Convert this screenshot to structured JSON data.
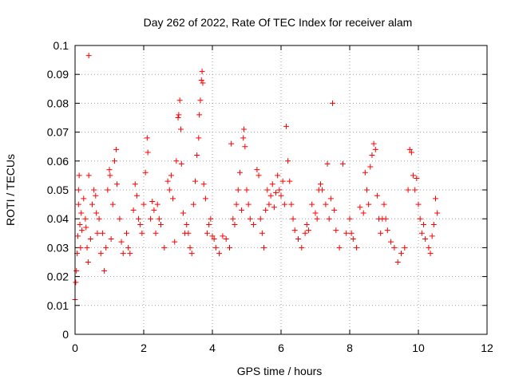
{
  "chart_data": {
    "type": "scatter",
    "title": "Day 262 of 2022, Rate Of TEC Index for receiver alam",
    "xlabel": "GPS time / hours",
    "ylabel": "ROTI / TECUs",
    "xlim": [
      0,
      12
    ],
    "ylim": [
      0,
      0.1
    ],
    "xticks": [
      "0",
      "2",
      "4",
      "6",
      "8",
      "10",
      "12"
    ],
    "yticks": [
      "0",
      "0.01",
      "0.02",
      "0.03",
      "0.04",
      "0.05",
      "0.06",
      "0.07",
      "0.08",
      "0.09",
      "0.1"
    ],
    "grid": true,
    "legend": "none",
    "marker": "plus",
    "color": "#ff0000",
    "series": [
      {
        "values": [
          [
            0.0,
            0.012
          ],
          [
            0.02,
            0.018
          ],
          [
            0.04,
            0.022
          ],
          [
            0.06,
            0.028
          ],
          [
            0.08,
            0.034
          ],
          [
            0.1,
            0.05
          ],
          [
            0.1,
            0.045
          ],
          [
            0.12,
            0.055
          ],
          [
            0.14,
            0.038
          ],
          [
            0.16,
            0.03
          ],
          [
            0.18,
            0.042
          ],
          [
            0.2,
            0.036
          ],
          [
            0.25,
            0.047
          ],
          [
            0.3,
            0.04
          ],
          [
            0.32,
            0.037
          ],
          [
            0.35,
            0.03
          ],
          [
            0.38,
            0.025
          ],
          [
            0.4,
            0.0965
          ],
          [
            0.4,
            0.055
          ],
          [
            0.45,
            0.033
          ],
          [
            0.5,
            0.045
          ],
          [
            0.55,
            0.05
          ],
          [
            0.6,
            0.048
          ],
          [
            0.62,
            0.042
          ],
          [
            0.65,
            0.035
          ],
          [
            0.7,
            0.04
          ],
          [
            0.75,
            0.028
          ],
          [
            0.8,
            0.035
          ],
          [
            0.85,
            0.022
          ],
          [
            0.9,
            0.03
          ],
          [
            0.95,
            0.05
          ],
          [
            1.0,
            0.057
          ],
          [
            1.02,
            0.055
          ],
          [
            1.05,
            0.033
          ],
          [
            1.1,
            0.045
          ],
          [
            1.15,
            0.06
          ],
          [
            1.2,
            0.064
          ],
          [
            1.22,
            0.052
          ],
          [
            1.3,
            0.04
          ],
          [
            1.35,
            0.032
          ],
          [
            1.4,
            0.028
          ],
          [
            1.5,
            0.035
          ],
          [
            1.55,
            0.03
          ],
          [
            1.6,
            0.028
          ],
          [
            1.7,
            0.043
          ],
          [
            1.75,
            0.052
          ],
          [
            1.8,
            0.048
          ],
          [
            1.85,
            0.04
          ],
          [
            1.9,
            0.038
          ],
          [
            1.95,
            0.035
          ],
          [
            2.0,
            0.045
          ],
          [
            2.05,
            0.056
          ],
          [
            2.1,
            0.068
          ],
          [
            2.12,
            0.063
          ],
          [
            2.2,
            0.04
          ],
          [
            2.25,
            0.046
          ],
          [
            2.3,
            0.043
          ],
          [
            2.35,
            0.035
          ],
          [
            2.4,
            0.045
          ],
          [
            2.45,
            0.04
          ],
          [
            2.5,
            0.038
          ],
          [
            2.6,
            0.03
          ],
          [
            2.7,
            0.053
          ],
          [
            2.75,
            0.05
          ],
          [
            2.8,
            0.055
          ],
          [
            2.85,
            0.047
          ],
          [
            2.9,
            0.032
          ],
          [
            2.95,
            0.06
          ],
          [
            3.0,
            0.075
          ],
          [
            3.02,
            0.076
          ],
          [
            3.05,
            0.081
          ],
          [
            3.08,
            0.071
          ],
          [
            3.1,
            0.059
          ],
          [
            3.15,
            0.042
          ],
          [
            3.2,
            0.035
          ],
          [
            3.25,
            0.038
          ],
          [
            3.3,
            0.035
          ],
          [
            3.35,
            0.03
          ],
          [
            3.4,
            0.028
          ],
          [
            3.45,
            0.045
          ],
          [
            3.5,
            0.053
          ],
          [
            3.55,
            0.062
          ],
          [
            3.6,
            0.068
          ],
          [
            3.62,
            0.076
          ],
          [
            3.65,
            0.081
          ],
          [
            3.68,
            0.088
          ],
          [
            3.7,
            0.091
          ],
          [
            3.72,
            0.087
          ],
          [
            3.75,
            0.052
          ],
          [
            3.8,
            0.047
          ],
          [
            3.85,
            0.035
          ],
          [
            3.9,
            0.038
          ],
          [
            3.95,
            0.04
          ],
          [
            4.0,
            0.034
          ],
          [
            4.05,
            0.033
          ],
          [
            4.1,
            0.03
          ],
          [
            4.2,
            0.028
          ],
          [
            4.3,
            0.034
          ],
          [
            4.4,
            0.033
          ],
          [
            4.5,
            0.03
          ],
          [
            4.55,
            0.066
          ],
          [
            4.6,
            0.04
          ],
          [
            4.65,
            0.038
          ],
          [
            4.7,
            0.045
          ],
          [
            4.75,
            0.05
          ],
          [
            4.8,
            0.056
          ],
          [
            4.85,
            0.043
          ],
          [
            4.9,
            0.068
          ],
          [
            4.92,
            0.071
          ],
          [
            4.95,
            0.065
          ],
          [
            5.0,
            0.05
          ],
          [
            5.05,
            0.045
          ],
          [
            5.1,
            0.04
          ],
          [
            5.2,
            0.038
          ],
          [
            5.3,
            0.057
          ],
          [
            5.35,
            0.055
          ],
          [
            5.4,
            0.04
          ],
          [
            5.45,
            0.035
          ],
          [
            5.5,
            0.03
          ],
          [
            5.55,
            0.043
          ],
          [
            5.6,
            0.05
          ],
          [
            5.65,
            0.045
          ],
          [
            5.7,
            0.048
          ],
          [
            5.75,
            0.052
          ],
          [
            5.8,
            0.044
          ],
          [
            5.85,
            0.049
          ],
          [
            5.9,
            0.055
          ],
          [
            5.95,
            0.05
          ],
          [
            6.0,
            0.048
          ],
          [
            6.05,
            0.053
          ],
          [
            6.1,
            0.045
          ],
          [
            6.15,
            0.072
          ],
          [
            6.2,
            0.06
          ],
          [
            6.25,
            0.053
          ],
          [
            6.3,
            0.045
          ],
          [
            6.35,
            0.04
          ],
          [
            6.4,
            0.036
          ],
          [
            6.5,
            0.033
          ],
          [
            6.6,
            0.03
          ],
          [
            6.7,
            0.035
          ],
          [
            6.75,
            0.038
          ],
          [
            6.8,
            0.036
          ],
          [
            6.9,
            0.045
          ],
          [
            7.0,
            0.042
          ],
          [
            7.05,
            0.04
          ],
          [
            7.1,
            0.05
          ],
          [
            7.15,
            0.052
          ],
          [
            7.2,
            0.05
          ],
          [
            7.3,
            0.045
          ],
          [
            7.35,
            0.059
          ],
          [
            7.4,
            0.04
          ],
          [
            7.45,
            0.047
          ],
          [
            7.5,
            0.08
          ],
          [
            7.55,
            0.043
          ],
          [
            7.6,
            0.036
          ],
          [
            7.7,
            0.03
          ],
          [
            7.8,
            0.059
          ],
          [
            7.9,
            0.035
          ],
          [
            8.0,
            0.04
          ],
          [
            8.05,
            0.035
          ],
          [
            8.1,
            0.033
          ],
          [
            8.2,
            0.03
          ],
          [
            8.3,
            0.044
          ],
          [
            8.4,
            0.042
          ],
          [
            8.45,
            0.056
          ],
          [
            8.5,
            0.05
          ],
          [
            8.55,
            0.045
          ],
          [
            8.6,
            0.058
          ],
          [
            8.65,
            0.062
          ],
          [
            8.7,
            0.066
          ],
          [
            8.75,
            0.064
          ],
          [
            8.8,
            0.048
          ],
          [
            8.85,
            0.04
          ],
          [
            8.9,
            0.035
          ],
          [
            8.95,
            0.04
          ],
          [
            9.0,
            0.045
          ],
          [
            9.05,
            0.04
          ],
          [
            9.1,
            0.036
          ],
          [
            9.2,
            0.032
          ],
          [
            9.3,
            0.03
          ],
          [
            9.4,
            0.025
          ],
          [
            9.5,
            0.028
          ],
          [
            9.6,
            0.03
          ],
          [
            9.7,
            0.05
          ],
          [
            9.75,
            0.064
          ],
          [
            9.8,
            0.063
          ],
          [
            9.85,
            0.055
          ],
          [
            9.9,
            0.05
          ],
          [
            9.95,
            0.054
          ],
          [
            10.0,
            0.045
          ],
          [
            10.05,
            0.04
          ],
          [
            10.1,
            0.035
          ],
          [
            10.15,
            0.038
          ],
          [
            10.2,
            0.033
          ],
          [
            10.3,
            0.03
          ],
          [
            10.35,
            0.028
          ],
          [
            10.4,
            0.034
          ],
          [
            10.45,
            0.038
          ],
          [
            10.5,
            0.047
          ],
          [
            10.55,
            0.042
          ]
        ]
      }
    ]
  }
}
